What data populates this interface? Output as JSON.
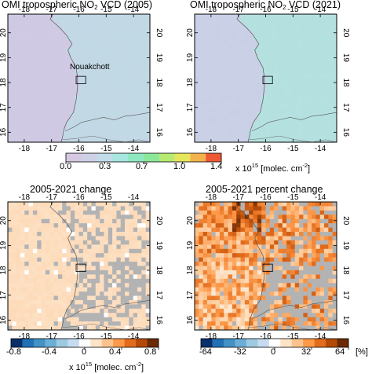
{
  "panels": [
    {
      "id": "p1",
      "title_prefix": "OMI tropospheric NO",
      "title_sub": "2",
      "title_suffix": " VCD (2005)",
      "kind": "vcd",
      "year": 2005,
      "city_label": "Nouakchott"
    },
    {
      "id": "p2",
      "title_prefix": "OMI tropospheric NO",
      "title_sub": "2",
      "title_suffix": " VCD (2021)",
      "kind": "vcd",
      "year": 2021
    },
    {
      "id": "p3",
      "title_prefix": "2005-2021 change",
      "title_sub": "",
      "title_suffix": "",
      "kind": "change"
    },
    {
      "id": "p4",
      "title_prefix": "2005-2021 percent change",
      "title_sub": "",
      "title_suffix": "",
      "kind": "pct"
    }
  ],
  "lon_ticks": [
    "-18",
    "-17",
    "-16",
    "-15",
    "-14"
  ],
  "lat_ticks": [
    "16",
    "17",
    "18",
    "19",
    "20"
  ],
  "colorbar_top": {
    "ticks": [
      "0.0",
      "0.3",
      "0.7",
      "1.0",
      "1.4"
    ],
    "unit_prefix": "x 10",
    "unit_exp": "15",
    "unit_suffix": " [molec. cm",
    "unit_exp2": "-2",
    "unit_close": "]",
    "colors": [
      "#d6c8e2",
      "#cdd0e6",
      "#c3dcea",
      "#a8e6e0",
      "#8ee8c2",
      "#8be89b",
      "#b7ea72",
      "#e6e65c",
      "#f2b24e",
      "#ef5a36"
    ]
  },
  "colorbar_change": {
    "ticks": [
      "-0.8",
      "-0.4",
      "0",
      "0.4",
      "0.8"
    ],
    "unit_prefix": "x 10",
    "unit_exp": "15",
    "unit_suffix": " [molec. cm",
    "unit_exp2": "-2",
    "unit_close": "]",
    "colors": [
      "#08306b",
      "#2171b5",
      "#4292c6",
      "#6baed6",
      "#9ecae1",
      "#c6dbef",
      "#ffffff",
      "#fde3c8",
      "#fdc38e",
      "#fd9a4a",
      "#e36c1c",
      "#b34a08",
      "#6b2a05"
    ]
  },
  "colorbar_pct": {
    "ticks": [
      "-64",
      "-32",
      "0",
      "32",
      "64"
    ],
    "unit": "[%]",
    "colors": [
      "#08306b",
      "#2171b5",
      "#4292c6",
      "#6baed6",
      "#9ecae1",
      "#c6dbef",
      "#ffffff",
      "#fde3c8",
      "#fdc38e",
      "#fd9a4a",
      "#e36c1c",
      "#b34a08",
      "#6b2a05"
    ]
  },
  "colors": {
    "vcd_ocean_2005": "#cfc9e3",
    "vcd_land_2005": "#c6d6e8",
    "vcd_ocean_2021": "#c9d0e6",
    "vcd_land_2021": "#b6e0e2",
    "change_base": "#fde1c5",
    "missing": "#b3b3b3"
  }
}
